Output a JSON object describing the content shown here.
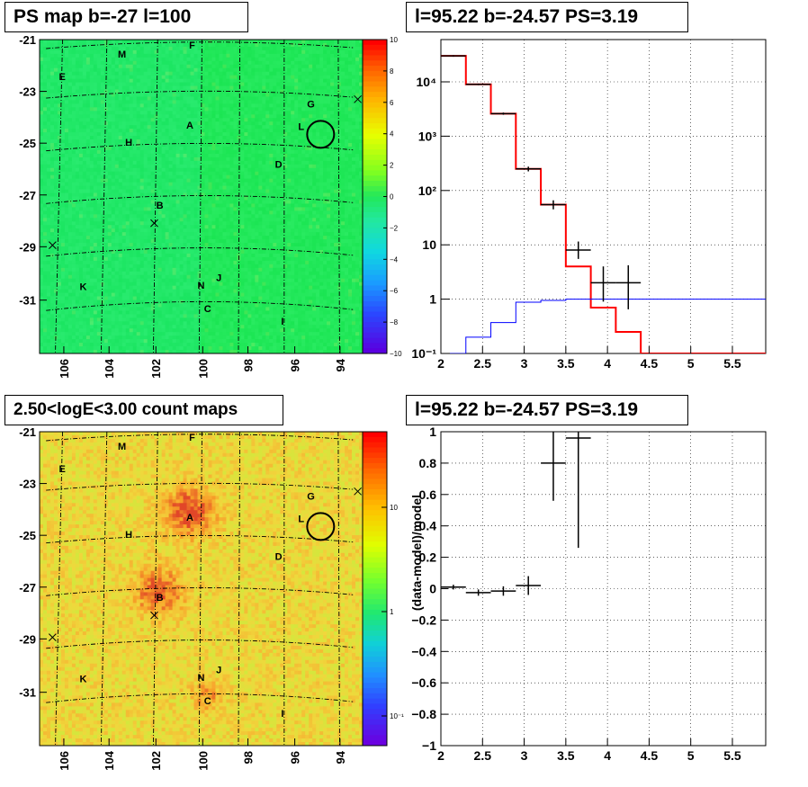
{
  "panels": {
    "top_left_title": "PS map b=-27 l=100",
    "bottom_left_title": "2.50<logE<3.00 count maps",
    "top_right_title": "l=95.22 b=-24.57 PS=3.19",
    "bottom_right_title": "l=95.22 b=-24.57 PS=3.19"
  },
  "source_labels": [
    "M",
    "F",
    "E",
    "G",
    "L",
    "A",
    "H",
    "D",
    "B",
    "J",
    "N",
    "K",
    "C",
    "I"
  ],
  "chart_data": [
    {
      "id": "ps-map",
      "type": "heatmap",
      "title": "PS map b=-27 l=100",
      "x_tick_labels": [
        "106",
        "104",
        "102",
        "100",
        "98",
        "96",
        "94"
      ],
      "y_tick_labels": [
        "-21",
        "-23",
        "-25",
        "-27",
        "-29",
        "-31"
      ],
      "colorbar_labels": [
        "10",
        "8",
        "6",
        "4",
        "2",
        "0",
        "−2",
        "−4",
        "−6",
        "−8",
        "−10"
      ],
      "colorbar_range": [
        -10,
        10
      ],
      "colors": {
        "background": "#22e85a",
        "low": "#5a00e0",
        "high": "#ff0000"
      }
    },
    {
      "id": "count-map",
      "type": "heatmap",
      "title": "2.50<logE<3.00 count maps",
      "x_tick_labels": [
        "106",
        "104",
        "102",
        "100",
        "98",
        "96",
        "94"
      ],
      "y_tick_labels": [
        "-21",
        "-23",
        "-25",
        "-27",
        "-29",
        "-31"
      ],
      "colorbar_labels": [
        "10",
        "1",
        "10⁻¹"
      ],
      "colorbar_scale": "log",
      "colors": {
        "background": "#f5c83c",
        "hot": "#e83a1e"
      }
    },
    {
      "id": "spectrum",
      "type": "line",
      "title": "l=95.22 b=-24.57 PS=3.19",
      "x_tick_labels": [
        "2",
        "2.5",
        "3",
        "3.5",
        "4",
        "4.5",
        "5",
        "5.5"
      ],
      "y_tick_labels": [
        "10⁻¹",
        "1",
        "10",
        "10²",
        "10³",
        "10⁴"
      ],
      "xlim": [
        2,
        5.9
      ],
      "ylim": [
        0.1,
        60000
      ],
      "yscale": "log",
      "grid": true,
      "bin_edges": [
        2,
        2.3,
        2.6,
        2.9,
        3.2,
        3.5,
        3.8,
        4.1,
        4.4,
        5.9
      ],
      "series": [
        {
          "color": "#ff0000",
          "values": [
            30000,
            9000,
            2600,
            250,
            55,
            4,
            0.7,
            0.25,
            0.1
          ]
        },
        {
          "color": "#0000ff",
          "values": [
            0.1,
            0.2,
            0.37,
            0.88,
            0.95,
            1.0,
            1.0,
            1.0,
            1.0
          ]
        }
      ],
      "data_points": [
        {
          "x": 2.15,
          "y": 30000,
          "xerr": 0.15,
          "ylo": 29000,
          "yhi": 31000
        },
        {
          "x": 2.45,
          "y": 9000,
          "xerr": 0.15,
          "ylo": 8700,
          "yhi": 9300
        },
        {
          "x": 2.75,
          "y": 2600,
          "xerr": 0.15,
          "ylo": 2480,
          "yhi": 2720
        },
        {
          "x": 3.05,
          "y": 250,
          "xerr": 0.15,
          "ylo": 225,
          "yhi": 275
        },
        {
          "x": 3.35,
          "y": 55,
          "xerr": 0.15,
          "ylo": 45,
          "yhi": 66
        },
        {
          "x": 3.65,
          "y": 8,
          "xerr": 0.15,
          "ylo": 5.5,
          "yhi": 11.5
        },
        {
          "x": 3.95,
          "y": 2,
          "xerr": 0.15,
          "ylo": 0.9,
          "yhi": 4
        },
        {
          "x": 4.25,
          "y": 2,
          "xerr": 0.15,
          "ylo": 0.65,
          "yhi": 4.2
        }
      ]
    },
    {
      "id": "residuals",
      "type": "scatter",
      "title": "l=95.22 b=-24.57 PS=3.19",
      "ylabel": "(data-model)/model",
      "x_tick_labels": [
        "2",
        "2.5",
        "3",
        "3.5",
        "4",
        "4.5",
        "5",
        "5.5"
      ],
      "y_tick_labels": [
        "1",
        "0.8",
        "0.6",
        "0.4",
        "0.2",
        "0",
        "−0.2",
        "−0.4",
        "−0.6",
        "−0.8",
        "−1"
      ],
      "xlim": [
        2,
        5.9
      ],
      "ylim": [
        -1,
        1
      ],
      "grid": true,
      "data_points": [
        {
          "x": 2.15,
          "y": 0.01,
          "xerr": 0.15,
          "yerr": 0.015
        },
        {
          "x": 2.45,
          "y": -0.025,
          "xerr": 0.15,
          "yerr": 0.02
        },
        {
          "x": 2.75,
          "y": -0.015,
          "xerr": 0.15,
          "yerr": 0.03
        },
        {
          "x": 3.05,
          "y": 0.02,
          "xerr": 0.15,
          "yerr": 0.06
        },
        {
          "x": 3.35,
          "y": 0.8,
          "xerr": 0.15,
          "yerr": 0.24
        },
        {
          "x": 3.65,
          "y": 0.96,
          "xerr": 0.15,
          "yerr": 0.7
        }
      ]
    }
  ]
}
